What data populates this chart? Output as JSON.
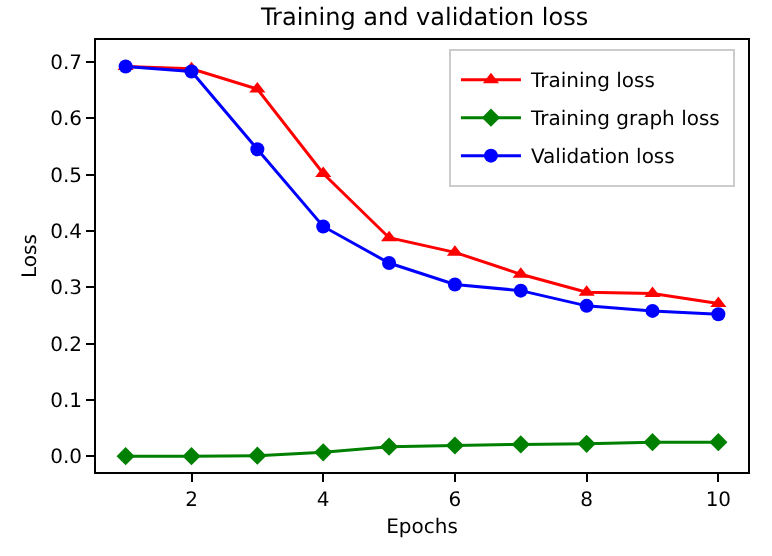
{
  "chart_data": {
    "type": "line",
    "title": "Training and validation loss",
    "xlabel": "Epochs",
    "ylabel": "Loss",
    "x": [
      1,
      2,
      3,
      4,
      5,
      6,
      7,
      8,
      9,
      10
    ],
    "series": [
      {
        "name": "Training loss",
        "color": "#ff0000",
        "marker": "triangle",
        "values": [
          0.692,
          0.688,
          0.652,
          0.502,
          0.388,
          0.362,
          0.323,
          0.291,
          0.289,
          0.271
        ]
      },
      {
        "name": "Training graph loss",
        "color": "#008000",
        "marker": "diamond",
        "values": [
          0.0,
          0.0,
          0.001,
          0.007,
          0.017,
          0.019,
          0.021,
          0.022,
          0.025,
          0.025
        ]
      },
      {
        "name": "Validation loss",
        "color": "#0000ff",
        "marker": "circle",
        "values": [
          0.692,
          0.683,
          0.545,
          0.408,
          0.343,
          0.305,
          0.294,
          0.267,
          0.258,
          0.252
        ]
      }
    ],
    "xlim": [
      0.55,
      10.45
    ],
    "xticks": [
      2,
      4,
      6,
      8,
      10
    ],
    "ylim": [
      -0.028,
      0.739
    ],
    "yticks": [
      {
        "value": 0.0,
        "label": "0.0"
      },
      {
        "value": 0.1,
        "label": "0.1"
      },
      {
        "value": 0.2,
        "label": "0.2"
      },
      {
        "value": 0.3,
        "label": "0.3"
      },
      {
        "value": 0.4,
        "label": "0.4"
      },
      {
        "value": 0.5,
        "label": "0.5"
      },
      {
        "value": 0.6,
        "label": "0.6"
      },
      {
        "value": 0.7,
        "label": "0.7"
      }
    ],
    "legend": "top right",
    "line_style": "solid"
  }
}
